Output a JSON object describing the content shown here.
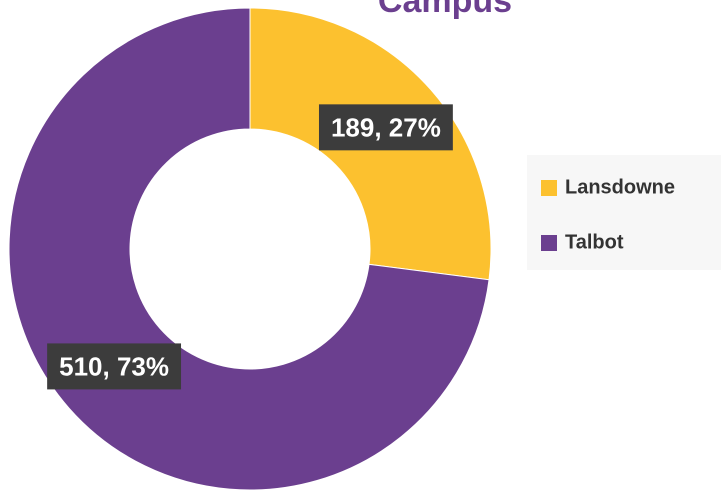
{
  "chart_data": {
    "type": "pie",
    "title": "Campus",
    "categories": [
      "Lansdowne",
      "Talbot"
    ],
    "values": [
      189,
      510
    ],
    "value_labels": [
      "189, 27%",
      "510, 73%"
    ],
    "colors": [
      "#fcc12f",
      "#6b3f8f"
    ],
    "legend": "right"
  }
}
